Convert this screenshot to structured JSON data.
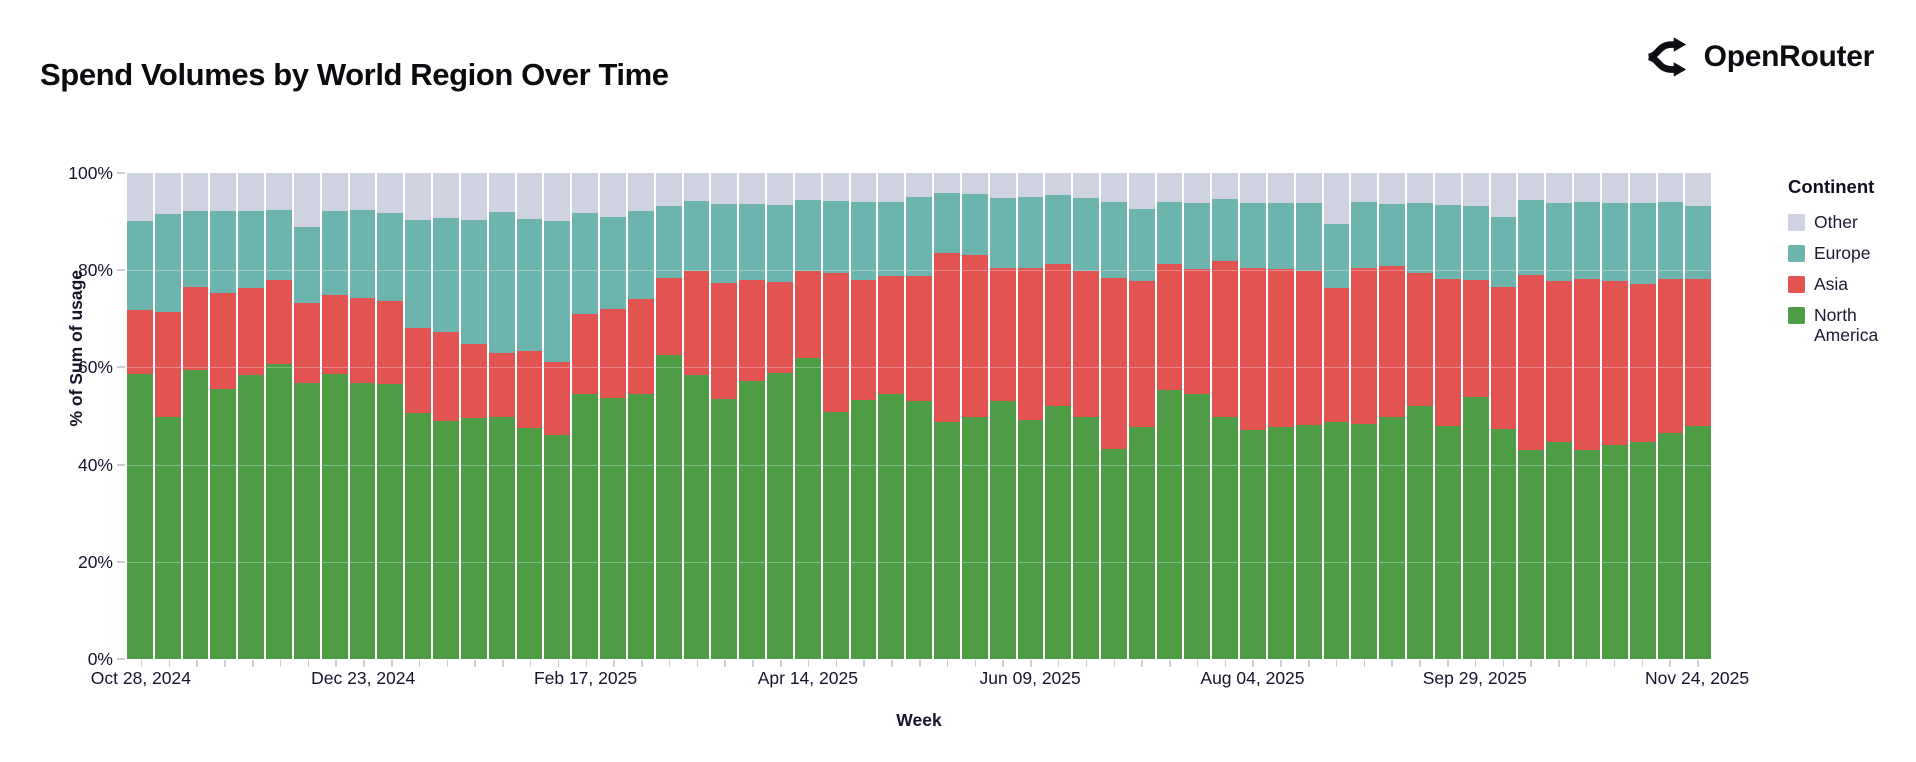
{
  "title": "Spend Volumes by World Region Over Time",
  "brand": {
    "name": "OpenRouter"
  },
  "legend": {
    "title": "Continent",
    "items": [
      {
        "label": "Other",
        "color": "#cfd2e0"
      },
      {
        "label": "Europe",
        "color": "#6db4ae"
      },
      {
        "label": "Asia",
        "color": "#e15452"
      },
      {
        "label": "North America",
        "color": "#4e9c45"
      }
    ]
  },
  "chart_data": {
    "type": "bar",
    "stacked": true,
    "normalized_percent": true,
    "title": "Spend Volumes by World Region Over Time",
    "xlabel": "Week",
    "ylabel": "% of Sum of usage",
    "ylim": [
      0,
      100
    ],
    "y_ticks": [
      "0%",
      "20%",
      "40%",
      "60%",
      "80%",
      "100%"
    ],
    "grid": "horizontal",
    "legend_position": "right",
    "x_tick_label_indices": [
      0,
      8,
      16,
      24,
      32,
      40,
      48,
      56
    ],
    "x_tick_labels": [
      "Oct 28, 2024",
      "Dec 23, 2024",
      "Feb 17, 2025",
      "Apr 14, 2025",
      "Jun 09, 2025",
      "Aug 04, 2025",
      "Sep 29, 2025",
      "Nov 24, 2025"
    ],
    "categories": [
      "Oct 28, 2024",
      "Nov 04, 2024",
      "Nov 11, 2024",
      "Nov 18, 2024",
      "Nov 25, 2024",
      "Dec 02, 2024",
      "Dec 09, 2024",
      "Dec 16, 2024",
      "Dec 23, 2024",
      "Dec 30, 2024",
      "Jan 06, 2025",
      "Jan 13, 2025",
      "Jan 20, 2025",
      "Jan 27, 2025",
      "Feb 03, 2025",
      "Feb 10, 2025",
      "Feb 17, 2025",
      "Feb 24, 2025",
      "Mar 03, 2025",
      "Mar 10, 2025",
      "Mar 17, 2025",
      "Mar 24, 2025",
      "Mar 31, 2025",
      "Apr 07, 2025",
      "Apr 14, 2025",
      "Apr 21, 2025",
      "Apr 28, 2025",
      "May 05, 2025",
      "May 12, 2025",
      "May 19, 2025",
      "May 26, 2025",
      "Jun 02, 2025",
      "Jun 09, 2025",
      "Jun 16, 2025",
      "Jun 23, 2025",
      "Jun 30, 2025",
      "Jul 07, 2025",
      "Jul 14, 2025",
      "Jul 21, 2025",
      "Jul 28, 2025",
      "Aug 04, 2025",
      "Aug 11, 2025",
      "Aug 18, 2025",
      "Aug 25, 2025",
      "Sep 01, 2025",
      "Sep 08, 2025",
      "Sep 15, 2025",
      "Sep 22, 2025",
      "Sep 29, 2025",
      "Oct 06, 2025",
      "Oct 13, 2025",
      "Oct 20, 2025",
      "Oct 27, 2025",
      "Nov 03, 2025",
      "Nov 10, 2025",
      "Nov 17, 2025",
      "Nov 24, 2025"
    ],
    "stack_order_bottom_to_top": [
      "North America",
      "Asia",
      "Europe",
      "Other"
    ],
    "series": [
      {
        "name": "North America",
        "color": "#4e9c45",
        "values": [
          58.7,
          49.7,
          59.4,
          55.5,
          58.5,
          60.6,
          56.8,
          58.7,
          56.7,
          56.5,
          50.7,
          49.0,
          49.5,
          49.9,
          47.6,
          46.1,
          54.6,
          53.7,
          54.5,
          62.6,
          58.5,
          53.4,
          57.2,
          58.9,
          62.0,
          50.8,
          53.3,
          54.6,
          53.0,
          48.7,
          49.9,
          53.0,
          49.2,
          52.1,
          49.9,
          43.2,
          47.8,
          55.3,
          54.6,
          49.7,
          47.1,
          47.8,
          48.1,
          48.8,
          48.3,
          49.9,
          52.1,
          48.0,
          54.0,
          47.3,
          43.0,
          44.7,
          43.0,
          44.0,
          44.6,
          46.6,
          48.0
        ]
      },
      {
        "name": "Asia",
        "color": "#e15452",
        "values": [
          13.1,
          21.7,
          17.2,
          19.9,
          17.8,
          17.3,
          16.4,
          16.3,
          17.6,
          17.1,
          17.5,
          18.2,
          15.3,
          13.0,
          15.7,
          15.0,
          16.3,
          18.3,
          19.6,
          15.8,
          21.3,
          23.9,
          20.8,
          18.6,
          17.8,
          28.7,
          24.7,
          24.2,
          25.8,
          34.8,
          33.3,
          27.4,
          31.3,
          29.1,
          29.9,
          35.2,
          29.9,
          25.9,
          25.6,
          32.1,
          33.4,
          32.4,
          31.7,
          27.5,
          32.2,
          31.0,
          27.4,
          30.1,
          24.0,
          29.3,
          36.1,
          33.1,
          35.1,
          33.8,
          32.6,
          31.5,
          30.1
        ]
      },
      {
        "name": "Europe",
        "color": "#6db4ae",
        "values": [
          18.4,
          20.1,
          15.6,
          16.8,
          15.9,
          14.5,
          15.6,
          17.2,
          18.1,
          18.1,
          22.1,
          23.6,
          25.5,
          29.0,
          27.2,
          29.1,
          20.8,
          19.0,
          18.1,
          14.9,
          14.4,
          16.4,
          15.7,
          15.9,
          14.6,
          14.8,
          16.1,
          15.3,
          16.3,
          12.3,
          12.4,
          14.5,
          14.6,
          14.3,
          15.0,
          15.7,
          14.9,
          12.9,
          13.6,
          12.8,
          13.3,
          13.6,
          14.0,
          13.2,
          13.6,
          12.8,
          14.4,
          15.3,
          15.3,
          14.4,
          15.3,
          16.1,
          16.0,
          16.1,
          16.7,
          16.0,
          15.1
        ]
      },
      {
        "name": "Other",
        "color": "#cfd2e0",
        "values": [
          9.8,
          8.5,
          7.8,
          7.8,
          7.8,
          7.6,
          11.2,
          7.8,
          7.6,
          8.3,
          9.7,
          9.2,
          9.7,
          8.1,
          9.5,
          9.8,
          8.3,
          9.0,
          7.8,
          6.7,
          5.8,
          6.3,
          6.3,
          6.6,
          5.6,
          5.7,
          5.9,
          5.9,
          4.9,
          4.2,
          4.4,
          5.1,
          4.9,
          4.5,
          5.2,
          5.9,
          7.4,
          5.9,
          6.2,
          5.4,
          6.2,
          6.2,
          6.2,
          10.5,
          5.9,
          6.3,
          6.1,
          6.6,
          6.7,
          9.0,
          5.6,
          6.1,
          5.9,
          6.1,
          6.1,
          5.9,
          6.8
        ]
      }
    ]
  }
}
